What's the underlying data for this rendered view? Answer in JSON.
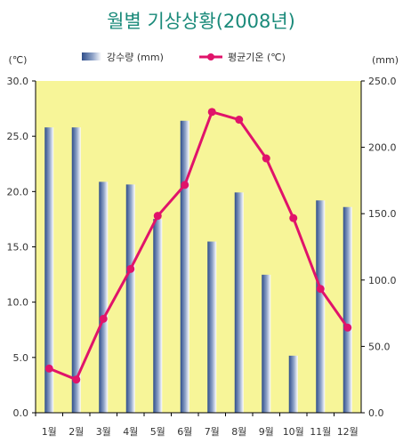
{
  "chart_data": {
    "type": "bar+line",
    "title": "월별 기상상황(2008년)",
    "left_unit": "(℃)",
    "right_unit": "(mm)",
    "categories": [
      "1월",
      "2월",
      "3월",
      "4월",
      "5월",
      "6월",
      "7월",
      "8월",
      "9월",
      "10월",
      "11월",
      "12월"
    ],
    "series": [
      {
        "name": "강수량 (mm)",
        "type": "bar",
        "axis": "right",
        "values": [
          215,
          215,
          174,
          172,
          146,
          220,
          129,
          166,
          104,
          43,
          160,
          155
        ],
        "color": "#2f4e8a"
      },
      {
        "name": "평균기온 (℃)",
        "type": "line",
        "axis": "left",
        "values": [
          4.0,
          3.0,
          8.5,
          13.0,
          17.8,
          20.6,
          27.2,
          26.5,
          23.0,
          17.6,
          11.2,
          7.7
        ],
        "color": "#e0136a"
      }
    ],
    "left_axis": {
      "min": 0,
      "max": 30,
      "ticks": [
        "0.0",
        "5.0",
        "10.0",
        "15.0",
        "20.0",
        "25.0",
        "30.0"
      ]
    },
    "right_axis": {
      "min": 0,
      "max": 250,
      "ticks": [
        "0.0",
        "50.0",
        "100.0",
        "150.0",
        "200.0",
        "250.0"
      ]
    },
    "plot_background": "#f7f598",
    "title_color": "#1a8a7a",
    "legend_position": "top"
  }
}
